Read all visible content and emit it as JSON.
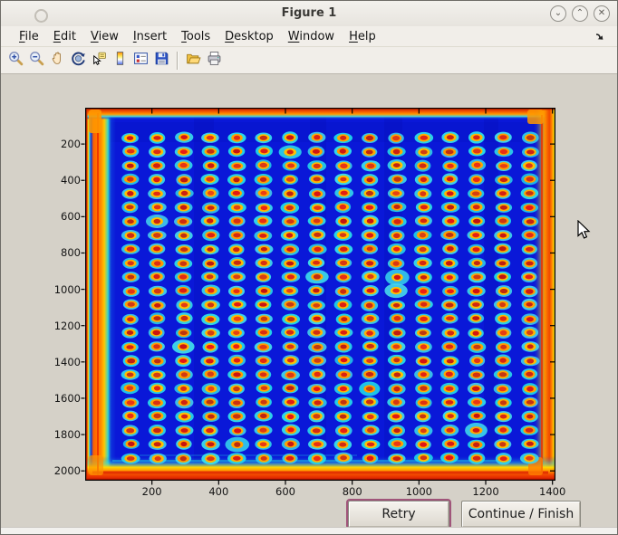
{
  "window": {
    "title": "Figure 1",
    "controls": [
      {
        "name": "minimize",
        "glyph": "⌄"
      },
      {
        "name": "maximize",
        "glyph": "⌃"
      },
      {
        "name": "close",
        "glyph": "✕"
      }
    ]
  },
  "menu": {
    "items": [
      {
        "label": "File",
        "mnemonic": 0
      },
      {
        "label": "Edit",
        "mnemonic": 0
      },
      {
        "label": "View",
        "mnemonic": 0
      },
      {
        "label": "Insert",
        "mnemonic": 0
      },
      {
        "label": "Tools",
        "mnemonic": 0
      },
      {
        "label": "Desktop",
        "mnemonic": 0
      },
      {
        "label": "Window",
        "mnemonic": 0
      },
      {
        "label": "Help",
        "mnemonic": 0
      }
    ]
  },
  "toolbar": {
    "groups": [
      [
        "zoom-in",
        "zoom-out",
        "pan",
        "rotate-3d",
        "data-cursor",
        "colorbar",
        "legend",
        "save"
      ],
      [
        "open",
        "print"
      ]
    ]
  },
  "buttons": {
    "retry": "Retry",
    "continue": "Continue / Finish"
  },
  "chart_data": {
    "type": "heatmap",
    "title": "",
    "description": "Jet-colormap intensity image of a 384-well microplate scan: 24 rows x 16 columns of bright spots (red cores, yellow rings, cyan halos) on a deep blue background, with hot red/orange bands along all plate edges",
    "colormap": "jet",
    "x_range": [
      0,
      1409
    ],
    "y_range": [
      0,
      2054
    ],
    "xticks": [
      200,
      400,
      600,
      800,
      1000,
      1200,
      1400
    ],
    "yticks": [
      200,
      400,
      600,
      800,
      1000,
      1200,
      1400,
      1600,
      1800,
      2000
    ],
    "grid": {
      "rows": 24,
      "cols": 16,
      "x_first": 136,
      "x_last": 1332,
      "y_first": 165,
      "y_last": 1930
    },
    "colors": {
      "background": "#0a18d8",
      "spot_core": "#cc1414",
      "spot_ring": "#ffc800",
      "spot_halo": "#2cc8e6",
      "edge_hot": "#e03000",
      "edge_warm": "#ff8800"
    }
  }
}
